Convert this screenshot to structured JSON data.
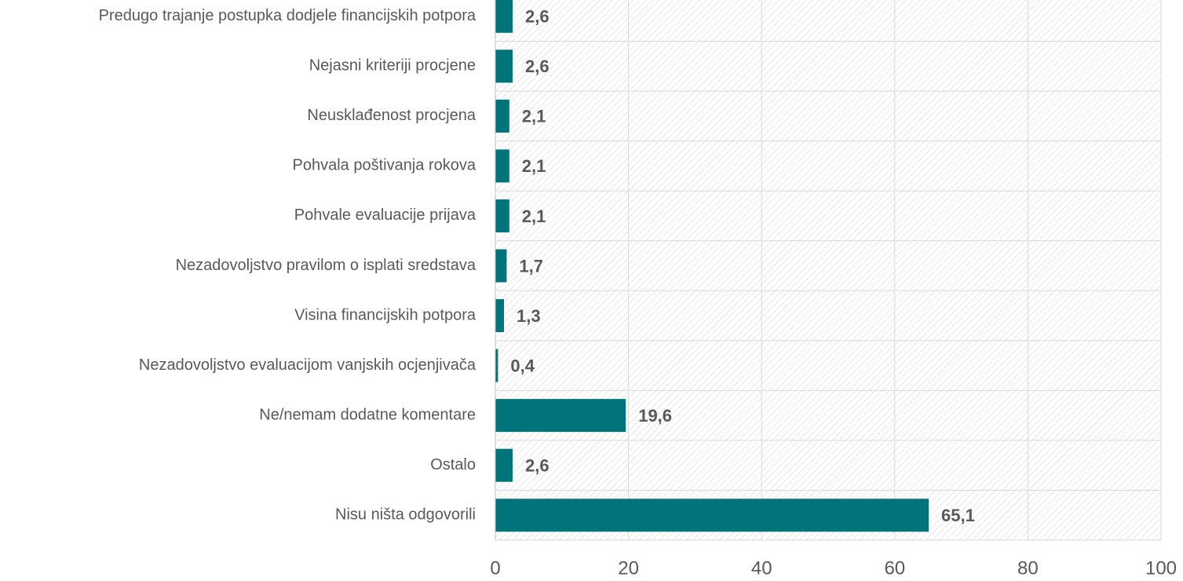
{
  "chart_data": {
    "type": "bar",
    "orientation": "horizontal",
    "categories": [
      "Predugo trajanje postupka dodjele financijskih potpora",
      "Nejasni kriteriji procjene",
      "Neusklađenost procjena",
      "Pohvala poštivanja rokova",
      "Pohvale evaluacije prijava",
      "Nezadovoljstvo pravilom o isplati sredstava",
      "Visina financijskih potpora",
      "Nezadovoljstvo evaluacijom vanjskih ocjenjivača",
      "Ne/nemam dodatne komentare",
      "Ostalo",
      "Nisu ništa odgovorili"
    ],
    "values": [
      2.6,
      2.6,
      2.1,
      2.1,
      2.1,
      1.7,
      1.3,
      0.4,
      19.6,
      2.6,
      65.1
    ],
    "value_labels": [
      "2,6",
      "2,6",
      "2,1",
      "2,1",
      "2,1",
      "1,7",
      "1,3",
      "0,4",
      "19,6",
      "2,6",
      "65,1"
    ],
    "color": "#00747a",
    "xlim": [
      0,
      100
    ],
    "xticks": [
      0,
      20,
      40,
      60,
      80,
      100
    ],
    "grid": true
  }
}
